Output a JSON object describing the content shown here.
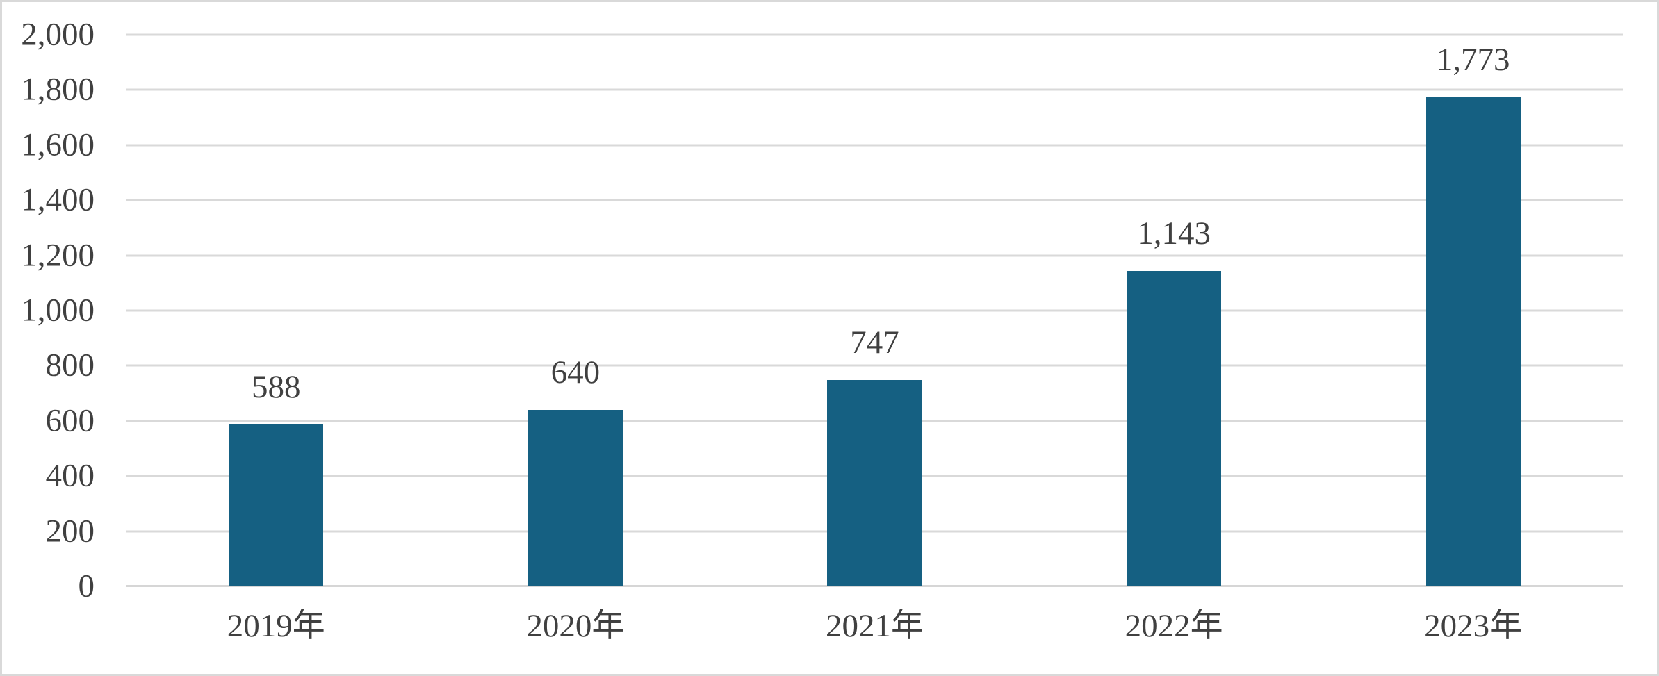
{
  "chart_data": {
    "type": "bar",
    "title": "",
    "xlabel": "",
    "ylabel": "",
    "categories": [
      "2019年",
      "2020年",
      "2021年",
      "2022年",
      "2023年"
    ],
    "values": [
      588,
      640,
      747,
      1143,
      1773
    ],
    "value_labels": [
      "588",
      "640",
      "747",
      "1,143",
      "1,773"
    ],
    "ylim": [
      0,
      2000
    ],
    "yticks": [
      0,
      200,
      400,
      600,
      800,
      1000,
      1200,
      1400,
      1600,
      1800,
      2000
    ],
    "ytick_labels": [
      "0",
      "200",
      "400",
      "600",
      "800",
      "1,000",
      "1,200",
      "1,400",
      "1,600",
      "1,800",
      "2,000"
    ],
    "grid": "horizontal",
    "legend": "none",
    "data_label_position": "outside-end",
    "colors": {
      "bar": "#156082",
      "gridline": "#D9D9D9",
      "axis_line": "#D6D6D6",
      "text": "#404040",
      "frame_border": "#D9D9D9",
      "background": "#FFFFFF"
    }
  }
}
